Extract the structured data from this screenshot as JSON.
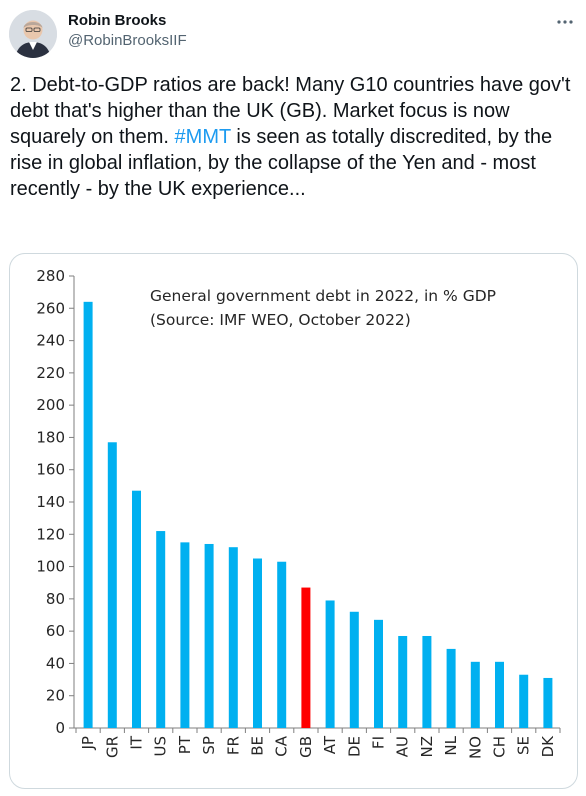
{
  "tweet": {
    "author_name": "Robin Brooks",
    "author_handle": "@RobinBrooksIIF",
    "text_before": "2. Debt-to-GDP ratios are back! Many G10 countries have gov't debt that's higher than the UK (GB). Market focus is now squarely on them. ",
    "hashtag": "#MMT",
    "text_after": " is seen as totally discredited, by the rise in global inflation, by the collapse of the Yen and - most recently - by the UK experience...",
    "more_icon": "more-horizontal-icon",
    "colors": {
      "link": "#1d9bf0",
      "text": "#0f1419",
      "secondary": "#536471"
    }
  },
  "chart_data": {
    "type": "bar",
    "title": "General government debt in 2022,  in % GDP",
    "subtitle": "(Source: IMF WEO, October 2022)",
    "categories": [
      "JP",
      "GR",
      "IT",
      "US",
      "PT",
      "SP",
      "FR",
      "BE",
      "CA",
      "GB",
      "AT",
      "DE",
      "FI",
      "AU",
      "NZ",
      "NL",
      "NO",
      "CH",
      "SE",
      "DK"
    ],
    "values": [
      264,
      177,
      147,
      122,
      115,
      114,
      112,
      105,
      103,
      87,
      79,
      72,
      67,
      57,
      57,
      49,
      41,
      41,
      33,
      31
    ],
    "highlight_index": 9,
    "colors": {
      "default": "#00b0f0",
      "highlight": "#ff0000"
    },
    "ylim": [
      0,
      280
    ],
    "yticks": [
      0,
      20,
      40,
      60,
      80,
      100,
      120,
      140,
      160,
      180,
      200,
      220,
      240,
      260,
      280
    ],
    "grid": false,
    "legend": "none"
  }
}
